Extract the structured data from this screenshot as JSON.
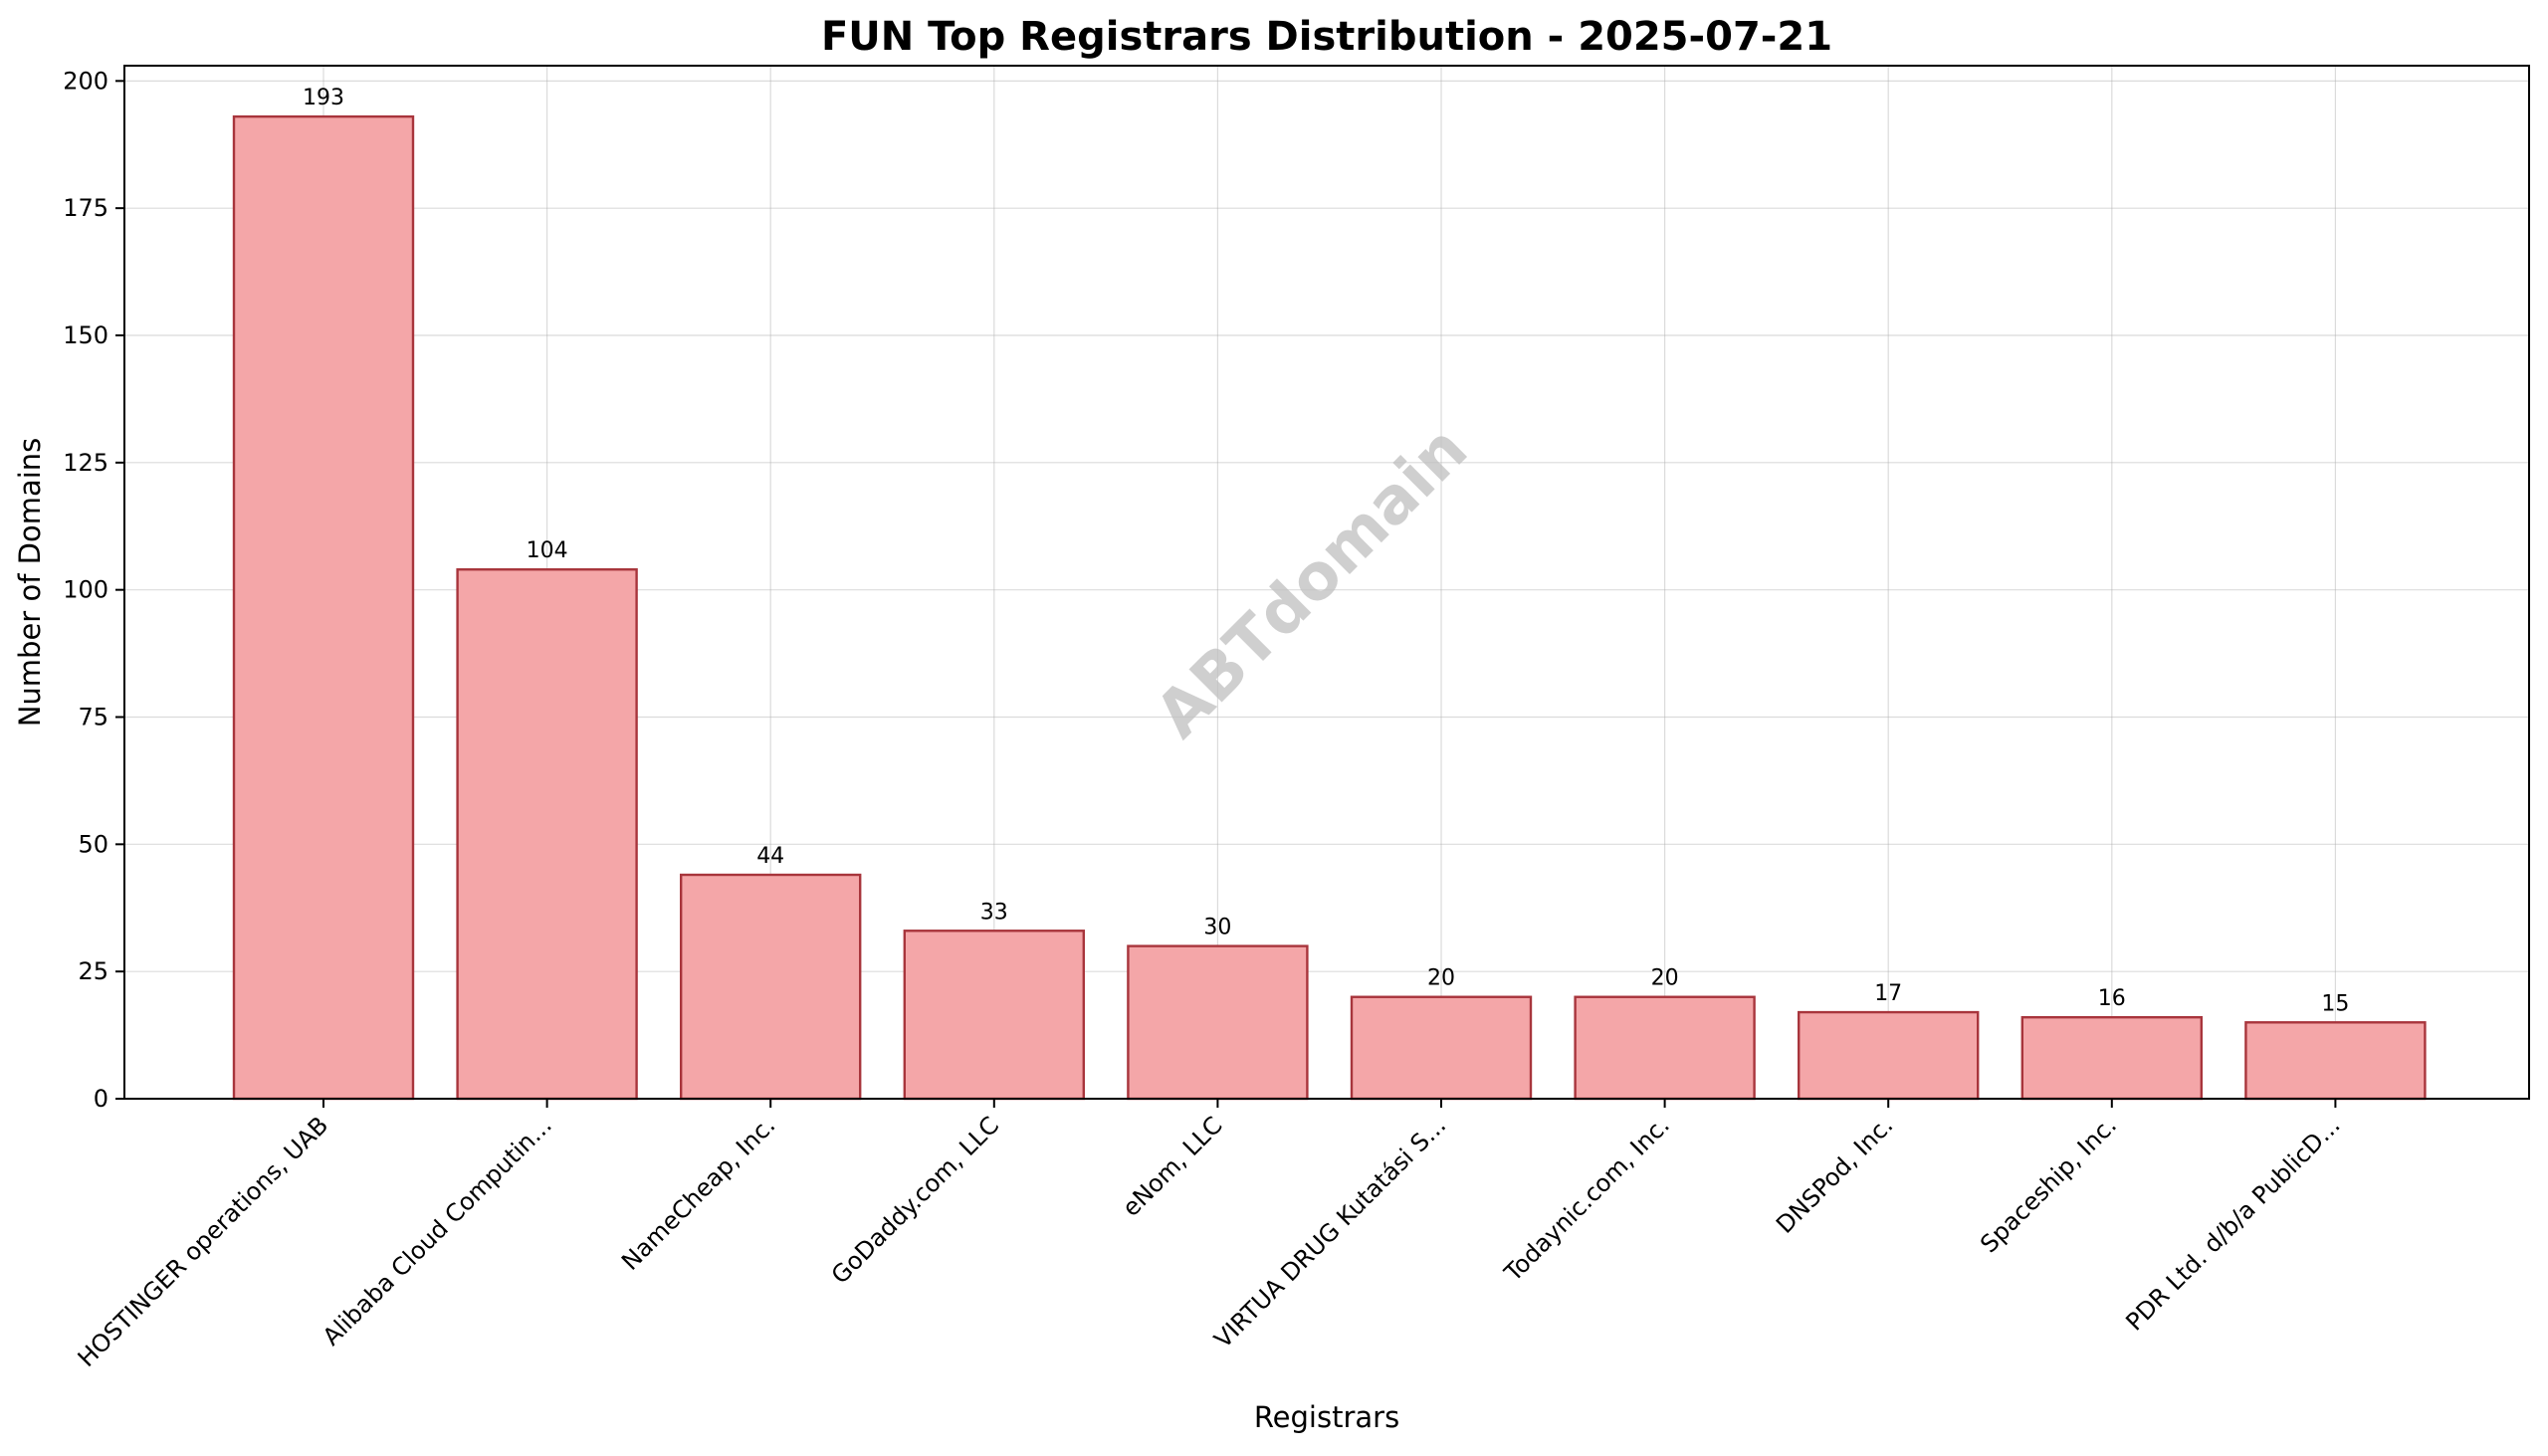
{
  "chart_data": {
    "type": "bar",
    "title": "FUN Top Registrars Distribution - 2025-07-21",
    "xlabel": "Registrars",
    "ylabel": "Number of Domains",
    "categories": [
      "HOSTINGER operations, UAB",
      "Alibaba Cloud Computin...",
      "NameCheap, Inc.",
      "GoDaddy.com, LLC",
      "eNom, LLC",
      "VIRTUA DRUG Kutatási S...",
      "Todaynic.com, Inc.",
      "DNSPod, Inc.",
      "Spaceship, Inc.",
      "PDR Ltd. d/b/a PublicD..."
    ],
    "values": [
      193,
      104,
      44,
      33,
      30,
      20,
      20,
      17,
      16,
      15
    ],
    "ylim": [
      0,
      203
    ],
    "yticks": [
      0,
      25,
      50,
      75,
      100,
      125,
      150,
      175,
      200
    ],
    "grid": true,
    "bar_color": "#f4a6a8",
    "bar_edge_color": "#a8353c",
    "watermark": "ABTdomain"
  }
}
